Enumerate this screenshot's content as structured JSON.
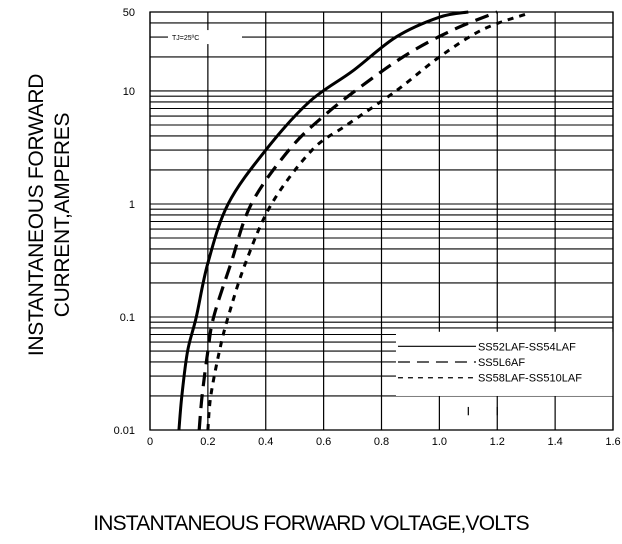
{
  "chart_data": {
    "type": "line",
    "title": "",
    "xlabel": "INSTANTANEOUS FORWARD VOLTAGE,VOLTS",
    "ylabel": [
      "INSTANTANEOUS FORWARD",
      "CURRENT,AMPERES"
    ],
    "xscale": "linear",
    "yscale": "log",
    "xlim": [
      0,
      1.6
    ],
    "ylim": [
      0.01,
      50
    ],
    "x_ticks": [
      "0",
      "0.2",
      "0.4",
      "0.6",
      "0.8",
      "1.0",
      "1.2",
      "1.4",
      "1.6"
    ],
    "y_ticks": [
      "0.01",
      "0.1",
      "1",
      "10",
      "50"
    ],
    "grid": true,
    "annotation": "TJ=25ºC",
    "legend_position": "bottom-right",
    "series": [
      {
        "name": "SS52LAF-SS54LAF",
        "style": "solid",
        "points": [
          [
            0.1,
            0.01
          ],
          [
            0.11,
            0.02
          ],
          [
            0.13,
            0.05
          ],
          [
            0.16,
            0.1
          ],
          [
            0.2,
            0.3
          ],
          [
            0.27,
            1.0
          ],
          [
            0.4,
            3.0
          ],
          [
            0.55,
            8.0
          ],
          [
            0.7,
            15.0
          ],
          [
            0.85,
            30.0
          ],
          [
            1.0,
            45.0
          ],
          [
            1.1,
            50.0
          ]
        ]
      },
      {
        "name": "SS5L6AF",
        "style": "dashed",
        "points": [
          [
            0.17,
            0.01
          ],
          [
            0.18,
            0.02
          ],
          [
            0.2,
            0.05
          ],
          [
            0.22,
            0.1
          ],
          [
            0.28,
            0.3
          ],
          [
            0.35,
            1.0
          ],
          [
            0.48,
            3.0
          ],
          [
            0.6,
            6.0
          ],
          [
            0.75,
            12.0
          ],
          [
            0.9,
            22.0
          ],
          [
            1.05,
            35.0
          ],
          [
            1.2,
            50.0
          ]
        ]
      },
      {
        "name": "SS58LAF-SS510LAF",
        "style": "dotted",
        "points": [
          [
            0.2,
            0.01
          ],
          [
            0.21,
            0.02
          ],
          [
            0.24,
            0.05
          ],
          [
            0.27,
            0.1
          ],
          [
            0.33,
            0.3
          ],
          [
            0.42,
            1.0
          ],
          [
            0.56,
            3.0
          ],
          [
            0.68,
            5.0
          ],
          [
            0.85,
            10.0
          ],
          [
            1.0,
            20.0
          ],
          [
            1.15,
            35.0
          ],
          [
            1.3,
            48.0
          ]
        ]
      }
    ]
  }
}
